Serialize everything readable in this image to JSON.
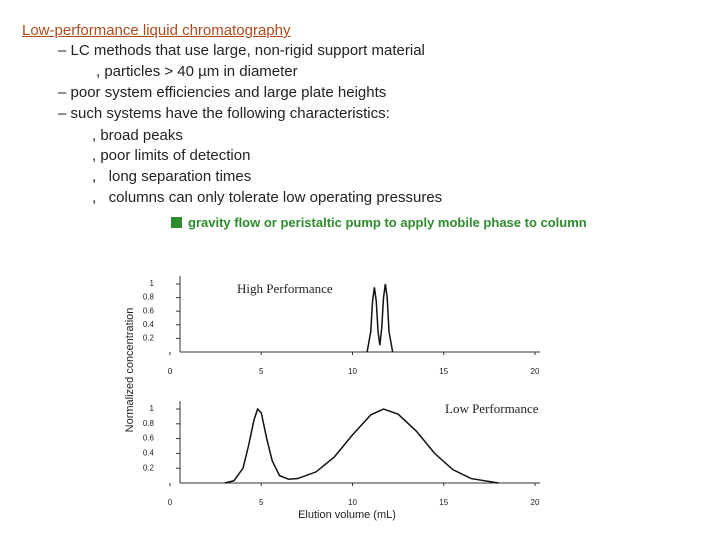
{
  "slide": {
    "title": "Low-performance liquid chromatography",
    "lines": [
      "– LC methods that use large, non-rigid support material",
      ", particles > 40 µm in diameter",
      "– poor system efficiencies and large plate heights",
      "– such systems have the following characteristics:",
      ", broad peaks",
      ", poor limits of detection",
      ",   long separation times",
      ",   columns can only tolerate low operating pressures"
    ],
    "note": "gravity flow or peristaltic pump to apply mobile phase to column"
  },
  "figure": {
    "ylabel": "Normalized concentration",
    "xlabel": "Elution volume (mL)"
  },
  "chart_data": [
    {
      "type": "line",
      "annotation": "High Performance",
      "xlim": [
        0,
        20
      ],
      "xticks": [
        0,
        5,
        10,
        15,
        20
      ],
      "ylim": [
        0,
        1
      ],
      "yticks": [
        0.2,
        0.4,
        0.6,
        0.8,
        1
      ],
      "series": [
        {
          "color": "#111111",
          "x": [
            10.8,
            11.0,
            11.1,
            11.2,
            11.3,
            11.4,
            11.5,
            11.6,
            11.7,
            11.8,
            11.9,
            12.0,
            12.2
          ],
          "values": [
            0,
            0.3,
            0.75,
            0.95,
            0.75,
            0.3,
            0.1,
            0.35,
            0.8,
            1,
            0.8,
            0.3,
            0
          ]
        }
      ]
    },
    {
      "type": "line",
      "annotation": "Low Performance",
      "xlim": [
        0,
        20
      ],
      "xticks": [
        0,
        5,
        10,
        15,
        20
      ],
      "ylim": [
        0,
        1
      ],
      "yticks": [
        0.2,
        0.4,
        0.6,
        0.8,
        1
      ],
      "series": [
        {
          "color": "#111111",
          "x": [
            3,
            3.5,
            4,
            4.3,
            4.6,
            4.8,
            5.0,
            5.3,
            5.6,
            6,
            6.5,
            7,
            8,
            9,
            10,
            11,
            11.7,
            12.5,
            13.5,
            14.5,
            15.5,
            16.5,
            18
          ],
          "values": [
            0,
            0.03,
            0.2,
            0.5,
            0.85,
            1,
            0.95,
            0.6,
            0.3,
            0.1,
            0.05,
            0.06,
            0.15,
            0.35,
            0.65,
            0.92,
            1,
            0.93,
            0.7,
            0.4,
            0.18,
            0.06,
            0
          ]
        }
      ]
    }
  ]
}
